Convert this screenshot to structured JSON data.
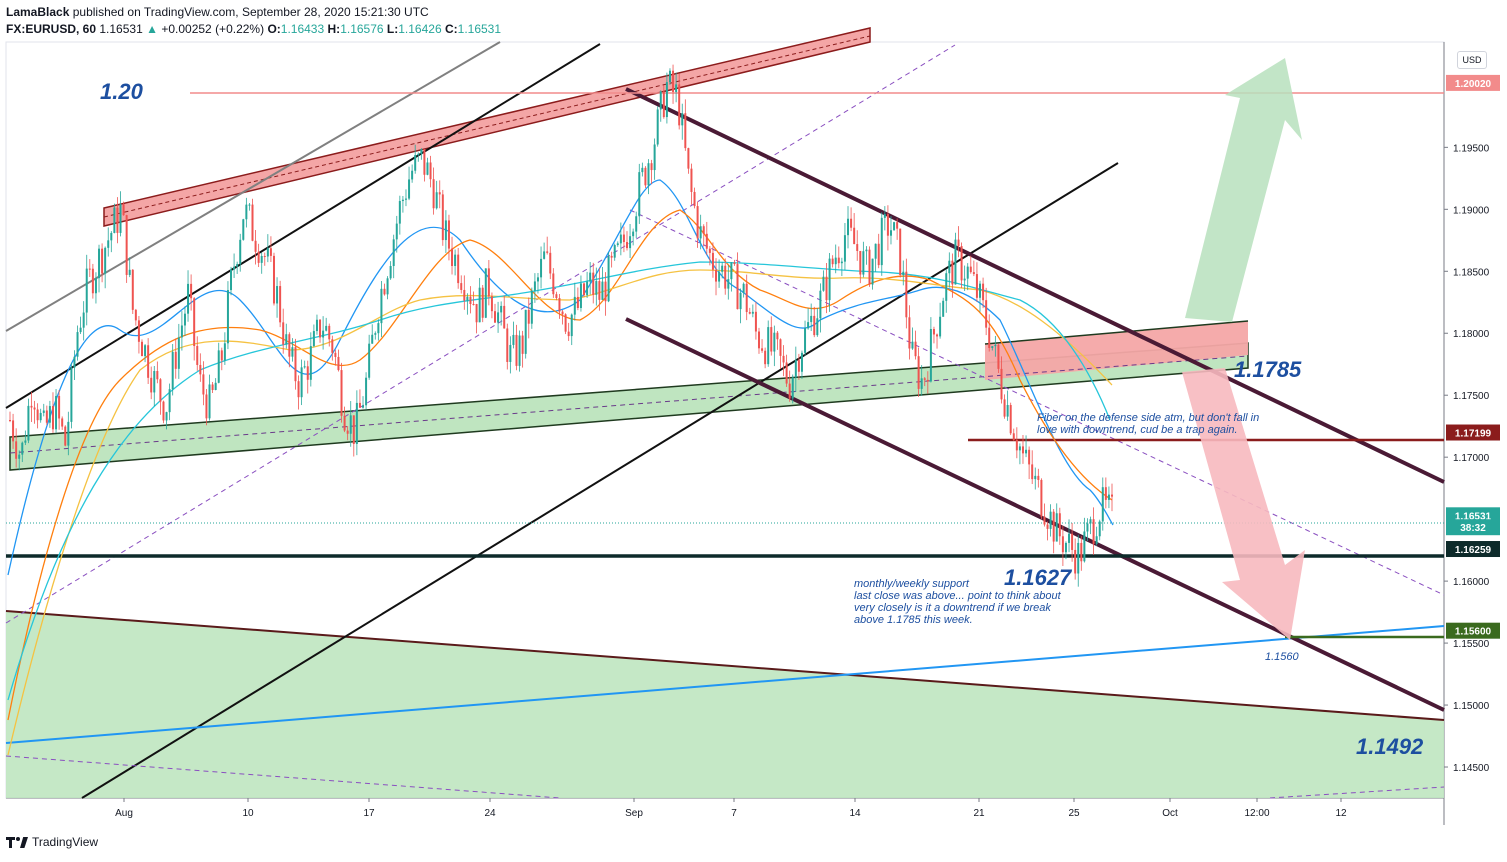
{
  "header": {
    "author": "LamaBlack",
    "published": "published on TradingView.com, September 28, 2020 15:21:30 UTC",
    "symbol": "FX:EURUSD, 60",
    "last": "1.16531",
    "change": "+0.00252 (+0.22%)",
    "o_label": "O:",
    "o_val": "1.16433",
    "h_label": "H:",
    "h_val": "1.16576",
    "l_label": "L:",
    "l_val": "1.16426",
    "c_label": "C:",
    "c_val": "1.16531"
  },
  "currency_button": "USD",
  "footer": {
    "brand": "TradingView"
  },
  "colors": {
    "up": "#26a69a",
    "down": "#ef5350",
    "channel": "#4a1a35",
    "pink_zone": "#f4a6a6",
    "green_zone": "#bfe5c0",
    "ma_blue": "#2196f3",
    "ma_orange": "#ff7f0e",
    "ma_yellow": "#f5c242"
  },
  "chart_data": {
    "type": "candlestick",
    "symbol": "FX:EURUSD",
    "interval": "60",
    "ylim": [
      1.1425,
      1.2035
    ],
    "x_tick_labels": [
      "Aug",
      "10",
      "17",
      "24",
      "Sep",
      "7",
      "14",
      "21",
      "25",
      "Oct",
      "12:00",
      "12"
    ],
    "y_tick_labels": [
      "1.19500",
      "1.19000",
      "1.18500",
      "1.18000",
      "1.17500",
      "1.17000",
      "1.16000",
      "1.15500",
      "1.15000",
      "1.14500"
    ],
    "y_tick_values": [
      1.195,
      1.19,
      1.185,
      1.18,
      1.175,
      1.17,
      1.16,
      1.155,
      1.15,
      1.145
    ],
    "price_labels": [
      {
        "text": "1.20020",
        "value": 1.2002,
        "color": "#f28b8b"
      },
      {
        "text": "1.17199",
        "value": 1.17199,
        "color": "#8b1c1c"
      },
      {
        "text": "1.16531",
        "value": 1.16531,
        "color": "#26a69a"
      },
      {
        "text": "38:32",
        "value": 1.16435,
        "color": "#26a69a"
      },
      {
        "text": "1.16259",
        "value": 1.16259,
        "color": "#0d2a2a"
      },
      {
        "text": "1.15600",
        "value": 1.156,
        "color": "#3a6a1e"
      }
    ],
    "price_path": [
      [
        1.173,
        1.17,
        1.176,
        1.172,
        1.174,
        1.171,
        1.18,
        1.184,
        1.186,
        1.188,
        1.19,
        1.182,
        1.179,
        1.176,
        1.174,
        1.179,
        1.183,
        1.176,
        1.174,
        1.178,
        1.185
      ],
      [
        1.19,
        1.188,
        1.186,
        1.183,
        1.178,
        1.176,
        1.178,
        1.181,
        1.179,
        1.174,
        1.172,
        1.176,
        1.182,
        1.186,
        1.19,
        1.193,
        1.194,
        1.192,
        1.188,
        1.186,
        1.184
      ],
      [
        1.182,
        1.184,
        1.181,
        1.178,
        1.179,
        1.183,
        1.186,
        1.184,
        1.181,
        1.182,
        1.184,
        1.183,
        1.185,
        1.187,
        1.19,
        1.193,
        1.196,
        1.2,
        1.199,
        1.192,
        1.188
      ],
      [
        1.186,
        1.185,
        1.184,
        1.183,
        1.18,
        1.179,
        1.178,
        1.176,
        1.179,
        1.181,
        1.183,
        1.186,
        1.188,
        1.187,
        1.185,
        1.187,
        1.189,
        1.186,
        1.178,
        1.176,
        1.18
      ],
      [
        1.184,
        1.186,
        1.185,
        1.183,
        1.18,
        1.176,
        1.173,
        1.17,
        1.168,
        1.166,
        1.164,
        1.163,
        1.162,
        1.164,
        1.166,
        1.1653
      ]
    ],
    "horizontal_levels": [
      {
        "value": 1.2002,
        "color": "#f28b8b"
      },
      {
        "value": 1.17199,
        "color": "#8b1c1c"
      },
      {
        "value": 1.16259,
        "color": "#0d2a2a"
      },
      {
        "value": 1.156,
        "color": "#3a6a1e"
      }
    ],
    "annotations": [
      {
        "text": "1.20",
        "style": "big"
      },
      {
        "text": "1.1785",
        "style": "big"
      },
      {
        "text": "1.1627",
        "style": "big"
      },
      {
        "text": "1.1492",
        "style": "big"
      },
      {
        "text": "1.1560",
        "style": "small"
      },
      {
        "text": "Fiber on the defense side atm, but don't fall in",
        "style": "note"
      },
      {
        "text": "love with downtrend, cud be a trap again.",
        "style": "note"
      },
      {
        "text": "monthly/weekly support",
        "style": "note"
      },
      {
        "text": "last close was above... point to think about",
        "style": "note"
      },
      {
        "text": "very closely is it a downtrend if we break",
        "style": "note"
      },
      {
        "text": "above 1.1785 this week.",
        "style": "note"
      }
    ]
  }
}
